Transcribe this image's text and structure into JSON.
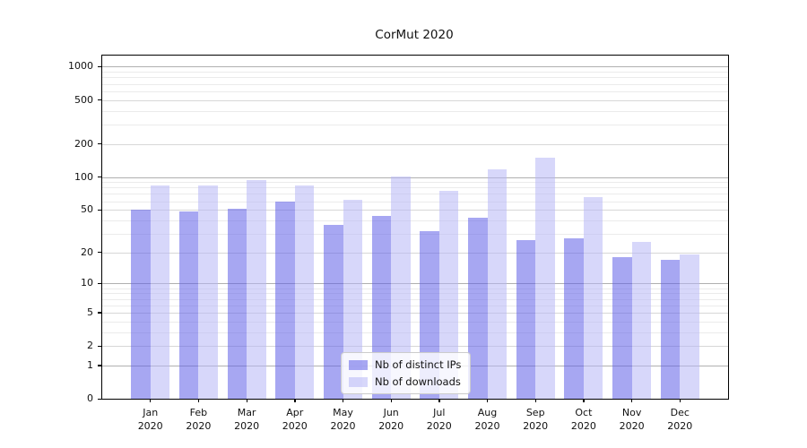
{
  "title": "CorMut 2020",
  "chart_data": {
    "type": "bar",
    "title": "CorMut 2020",
    "xlabel": "",
    "ylabel": "",
    "scale": "log1p",
    "grid": true,
    "legend_position": "lower center",
    "ylim": [
      0,
      1260
    ],
    "yticks": [
      1000,
      500,
      200,
      100,
      50,
      20,
      10,
      5,
      2,
      1,
      0
    ],
    "minor_gridlines": [
      900,
      800,
      700,
      600,
      400,
      300,
      90,
      80,
      70,
      60,
      40,
      30,
      9,
      8,
      7,
      6,
      4,
      3
    ],
    "categories": [
      "Jan 2020",
      "Feb 2020",
      "Mar 2020",
      "Apr 2020",
      "May 2020",
      "Jun 2020",
      "Jul 2020",
      "Aug 2020",
      "Sep 2020",
      "Oct 2020",
      "Nov 2020",
      "Dec 2020"
    ],
    "series": [
      {
        "name": "Nb of distinct IPs",
        "color": "rgba(94, 94, 232, 0.55)",
        "values": [
          50,
          48,
          51,
          59,
          36,
          44,
          32,
          42,
          26,
          27,
          18,
          17
        ]
      },
      {
        "name": "Nb of downloads",
        "color": "rgba(183, 183, 246, 0.55)",
        "values": [
          84,
          84,
          94,
          83,
          62,
          101,
          75,
          118,
          150,
          65,
          25,
          19
        ]
      }
    ]
  }
}
